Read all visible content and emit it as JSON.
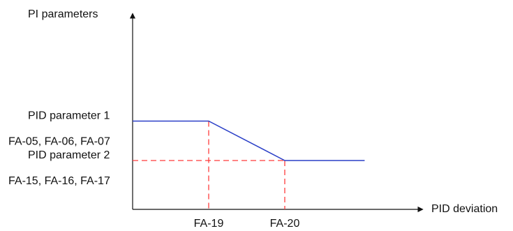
{
  "chart_data": {
    "type": "line",
    "ylabel": "PI parameters",
    "xlabel": "PID deviation",
    "x_ticks": [
      {
        "label": "FA-19",
        "value": 1
      },
      {
        "label": "FA-20",
        "value": 2
      }
    ],
    "y_levels": [
      {
        "label": "PID parameter 1",
        "codes": "FA-05, FA-06, FA-07",
        "value": 2
      },
      {
        "label": "PID parameter 2",
        "codes": "FA-15, FA-16, FA-17",
        "value": 1
      }
    ],
    "series": [
      {
        "points": [
          [
            0,
            2
          ],
          [
            1,
            2
          ],
          [
            2,
            1
          ],
          [
            3.05,
            1
          ]
        ]
      }
    ],
    "xlim": [
      0,
      3.5
    ],
    "ylim": [
      0,
      3
    ],
    "guide_lines": "dashed",
    "colors": {
      "line": "#2a3fc7",
      "guide": "#ff3b3b",
      "axis": "#111111"
    }
  }
}
